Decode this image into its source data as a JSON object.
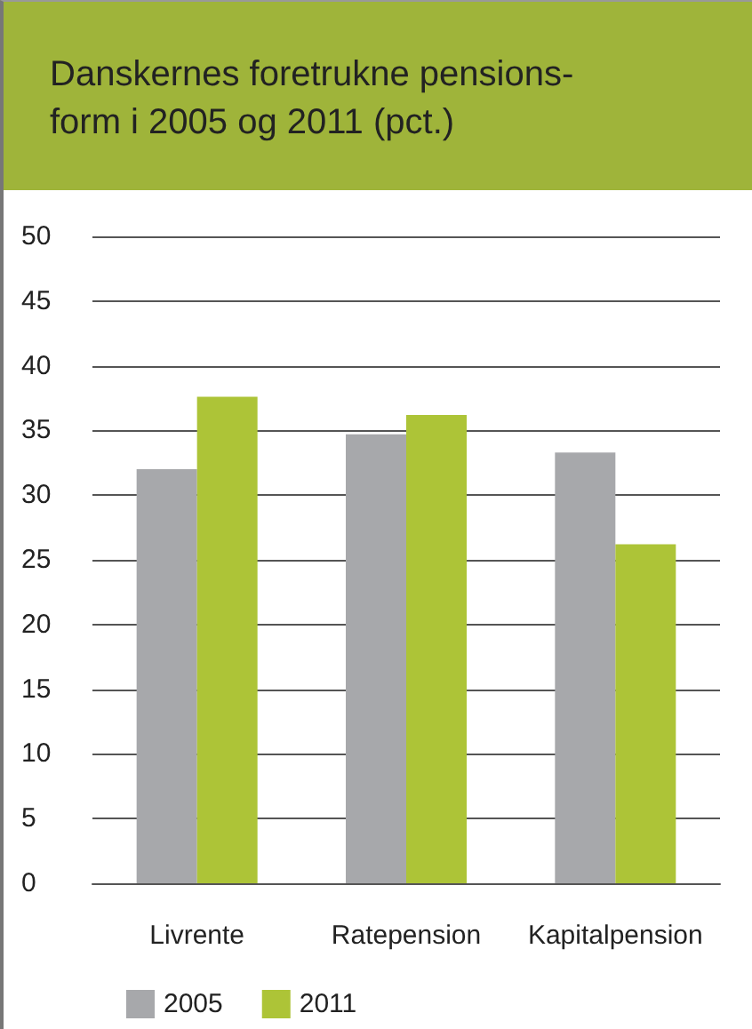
{
  "chart_data": {
    "type": "bar",
    "title": "Danskernes foretrukne pensions-\nform i 2005 og 2011 (pct.)",
    "categories": [
      "Livrente",
      "Ratepension",
      "Kapitalpension"
    ],
    "series": [
      {
        "name": "2005",
        "color": "#a7a8ab",
        "values": [
          32.0,
          34.7,
          33.3
        ]
      },
      {
        "name": "2011",
        "color": "#adc437",
        "values": [
          37.6,
          36.2,
          26.2
        ]
      }
    ],
    "ylim": [
      0,
      50
    ],
    "yticks": [
      0,
      5,
      10,
      15,
      20,
      25,
      30,
      35,
      40,
      45,
      50
    ],
    "grid": "y",
    "legend": "bottom left"
  }
}
